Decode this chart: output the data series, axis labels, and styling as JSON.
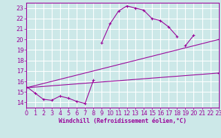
{
  "background_color": "#cce8e8",
  "grid_color": "#ffffff",
  "line_color": "#990099",
  "marker_color": "#990099",
  "xlabel": "Windchill (Refroidissement éolien,°C)",
  "ylabel": "",
  "xlim": [
    0,
    23
  ],
  "ylim": [
    13.5,
    23.5
  ],
  "xticks": [
    0,
    1,
    2,
    3,
    4,
    5,
    6,
    7,
    8,
    9,
    10,
    11,
    12,
    13,
    14,
    15,
    16,
    17,
    18,
    19,
    20,
    21,
    22,
    23
  ],
  "yticks": [
    14,
    15,
    16,
    17,
    18,
    19,
    20,
    21,
    22,
    23
  ],
  "xlabel_fontsize": 6,
  "tick_fontsize": 6,
  "series": [
    {
      "x": [
        0,
        1,
        2,
        3,
        4,
        5,
        6,
        7,
        8,
        9,
        10,
        11,
        12,
        13,
        14,
        15,
        16,
        17,
        18,
        19,
        20,
        21,
        22,
        23
      ],
      "y": [
        15.5,
        14.9,
        14.3,
        14.2,
        14.6,
        14.4,
        14.1,
        13.9,
        16.1,
        null,
        null,
        null,
        null,
        null,
        null,
        null,
        null,
        null,
        null,
        19.4,
        20.4,
        null,
        null,
        16.8
      ]
    },
    {
      "x": [
        0,
        1,
        2,
        3,
        4,
        5,
        6,
        7,
        8,
        9,
        10,
        11,
        12,
        13,
        14,
        15,
        16,
        17,
        18,
        19,
        20,
        21,
        22,
        23
      ],
      "y": [
        15.4,
        null,
        null,
        null,
        null,
        null,
        null,
        null,
        null,
        19.7,
        21.5,
        22.7,
        23.2,
        23.0,
        22.8,
        22.0,
        21.8,
        21.2,
        20.3,
        null,
        null,
        null,
        null,
        16.8
      ]
    },
    {
      "x": [
        0,
        23
      ],
      "y": [
        15.4,
        16.8
      ]
    },
    {
      "x": [
        0,
        23
      ],
      "y": [
        15.4,
        20.0
      ]
    }
  ]
}
